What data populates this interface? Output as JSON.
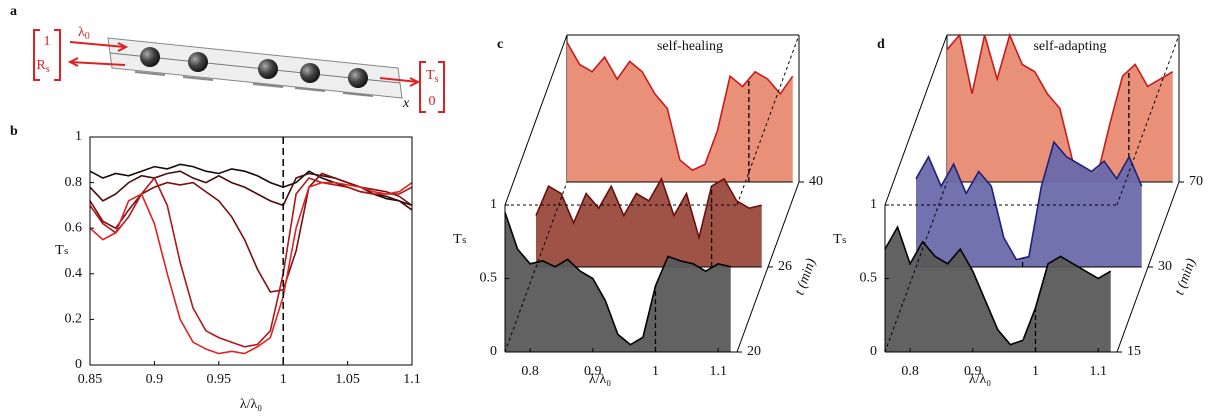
{
  "diagram": {
    "label": "a",
    "input_top": "1",
    "input_bottom": {
      "main": "R",
      "sub": "s"
    },
    "wavelength": {
      "main": "λ",
      "sub": "0"
    },
    "output_top": {
      "main": "T",
      "sub": "s"
    },
    "output_bottom": "0",
    "axis": "x"
  },
  "chart_data": [
    {
      "type": "line",
      "panel_label": "b",
      "xlabel": "λ/λ₀",
      "ylabel": "Tₛ",
      "x": [
        0.85,
        0.86,
        0.87,
        0.88,
        0.89,
        0.9,
        0.91,
        0.92,
        0.93,
        0.94,
        0.95,
        0.96,
        0.97,
        0.98,
        0.99,
        1.0,
        1.01,
        1.02,
        1.03,
        1.04,
        1.05,
        1.06,
        1.07,
        1.08,
        1.09,
        1.1
      ],
      "xlim": [
        0.85,
        1.1
      ],
      "xticks": [
        0.85,
        0.9,
        0.95,
        1,
        1.05,
        1.1
      ],
      "ylim": [
        0,
        1
      ],
      "yticks": [
        0,
        0.2,
        0.4,
        0.6,
        0.8,
        1
      ],
      "vline": 1,
      "series": [
        {
          "color": "#1a0808",
          "values": [
            0.85,
            0.82,
            0.84,
            0.83,
            0.85,
            0.87,
            0.86,
            0.88,
            0.87,
            0.85,
            0.84,
            0.86,
            0.85,
            0.83,
            0.8,
            0.78,
            0.8,
            0.85,
            0.82,
            0.8,
            0.78,
            0.76,
            0.75,
            0.73,
            0.72,
            0.7
          ]
        },
        {
          "color": "#4a0c0c",
          "values": [
            0.78,
            0.72,
            0.75,
            0.8,
            0.83,
            0.82,
            0.84,
            0.85,
            0.82,
            0.8,
            0.83,
            0.8,
            0.78,
            0.75,
            0.72,
            0.7,
            0.82,
            0.84,
            0.83,
            0.82,
            0.8,
            0.78,
            0.75,
            0.74,
            0.72,
            0.68
          ]
        },
        {
          "color": "#7a1010",
          "values": [
            0.72,
            0.63,
            0.6,
            0.68,
            0.75,
            0.78,
            0.8,
            0.79,
            0.8,
            0.76,
            0.72,
            0.65,
            0.55,
            0.42,
            0.32,
            0.33,
            0.5,
            0.78,
            0.84,
            0.82,
            0.8,
            0.78,
            0.77,
            0.76,
            0.74,
            0.7
          ]
        },
        {
          "color": "#b01818",
          "values": [
            0.7,
            0.62,
            0.58,
            0.65,
            0.75,
            0.82,
            0.7,
            0.45,
            0.25,
            0.15,
            0.12,
            0.1,
            0.08,
            0.09,
            0.15,
            0.4,
            0.75,
            0.82,
            0.8,
            0.79,
            0.78,
            0.76,
            0.75,
            0.75,
            0.75,
            0.78
          ]
        },
        {
          "color": "#e02424",
          "values": [
            0.6,
            0.55,
            0.58,
            0.72,
            0.75,
            0.62,
            0.4,
            0.2,
            0.1,
            0.07,
            0.05,
            0.06,
            0.05,
            0.08,
            0.12,
            0.3,
            0.6,
            0.78,
            0.8,
            0.8,
            0.79,
            0.78,
            0.76,
            0.75,
            0.76,
            0.8
          ]
        }
      ]
    },
    {
      "type": "waterfall",
      "panel_label": "c",
      "xlabel": "λ/λ₀",
      "ylabel": "Tₛ",
      "tlabel": "t (min)",
      "annotation": "self-healing",
      "x": [
        0.76,
        0.78,
        0.8,
        0.82,
        0.84,
        0.86,
        0.88,
        0.9,
        0.92,
        0.94,
        0.96,
        0.98,
        1.0,
        1.02,
        1.04,
        1.06,
        1.08,
        1.1,
        1.12
      ],
      "xlim": [
        0.76,
        1.13
      ],
      "xticks": [
        0.8,
        0.9,
        1,
        1.1
      ],
      "ylim": [
        0,
        1
      ],
      "yticks": [
        0,
        0.5,
        1
      ],
      "series": [
        {
          "t": 20,
          "color": "#000000",
          "fill": "#5a5a5a",
          "dashed": 1.0,
          "values": [
            0.95,
            0.7,
            0.6,
            0.62,
            0.58,
            0.63,
            0.55,
            0.5,
            0.35,
            0.12,
            0.05,
            0.1,
            0.45,
            0.65,
            0.62,
            0.6,
            0.55,
            0.6,
            0.58
          ]
        },
        {
          "t": 26,
          "color": "#6a1010",
          "fill": "#9a4a3c",
          "dashed": 1.04,
          "values": [
            0.35,
            0.55,
            0.5,
            0.3,
            0.5,
            0.4,
            0.55,
            0.35,
            0.5,
            0.45,
            0.6,
            0.35,
            0.5,
            0.2,
            0.55,
            0.6,
            0.45,
            0.4,
            0.42
          ]
        },
        {
          "t": 40,
          "color": "#c81c1c",
          "fill": "#e88a72",
          "dashed": 1.05,
          "values": [
            0.95,
            0.8,
            0.75,
            0.85,
            0.7,
            0.82,
            0.75,
            0.6,
            0.5,
            0.15,
            0.08,
            0.12,
            0.35,
            0.72,
            0.65,
            0.75,
            0.7,
            0.6,
            0.72
          ]
        }
      ]
    },
    {
      "type": "waterfall",
      "panel_label": "d",
      "xlabel": "λ/λ₀",
      "ylabel": "Tₛ",
      "tlabel": "t (min)",
      "annotation": "self-adapting",
      "x": [
        0.76,
        0.78,
        0.8,
        0.82,
        0.84,
        0.86,
        0.88,
        0.9,
        0.92,
        0.94,
        0.96,
        0.98,
        1.0,
        1.02,
        1.04,
        1.06,
        1.08,
        1.1,
        1.12
      ],
      "xlim": [
        0.76,
        1.13
      ],
      "xticks": [
        0.8,
        0.9,
        1,
        1.1
      ],
      "ylim": [
        0,
        1
      ],
      "yticks": [
        0,
        0.5,
        1
      ],
      "series": [
        {
          "t": 15,
          "color": "#000000",
          "fill": "#5a5a5a",
          "dashed": 1.0,
          "values": [
            0.7,
            0.85,
            0.6,
            0.75,
            0.65,
            0.6,
            0.7,
            0.55,
            0.35,
            0.15,
            0.05,
            0.08,
            0.3,
            0.6,
            0.65,
            0.6,
            0.55,
            0.5,
            0.55
          ]
        },
        {
          "t": 30,
          "color": "#20207a",
          "fill": "#6a6aaa",
          "dashed": 0.93,
          "values": [
            0.6,
            0.75,
            0.55,
            0.7,
            0.5,
            0.65,
            0.55,
            0.2,
            0.05,
            0.07,
            0.55,
            0.85,
            0.75,
            0.7,
            0.65,
            0.72,
            0.6,
            0.75,
            0.55
          ]
        },
        {
          "t": 70,
          "color": "#c81c1c",
          "fill": "#e88a72",
          "dashed": 1.05,
          "values": [
            0.9,
            1,
            0.6,
            1,
            0.7,
            1,
            0.8,
            0.75,
            0.6,
            0.5,
            0.15,
            0.08,
            0.05,
            0.4,
            0.72,
            0.8,
            0.65,
            0.7,
            0.75
          ]
        }
      ]
    }
  ]
}
